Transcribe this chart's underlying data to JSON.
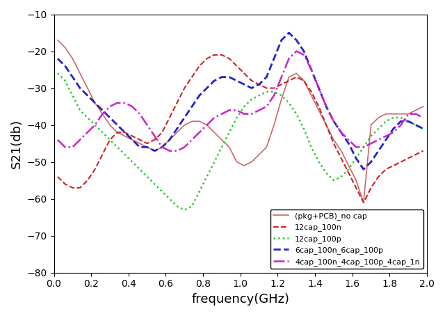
{
  "xlabel": "frequency(GHz)",
  "ylabel": "S21(db)",
  "xlim": [
    0,
    2.0
  ],
  "ylim": [
    -80,
    -10
  ],
  "yticks": [
    -80,
    -70,
    -60,
    -50,
    -40,
    -30,
    -20,
    -10
  ],
  "xticks": [
    0,
    0.2,
    0.4,
    0.6,
    0.8,
    1.0,
    1.2,
    1.4,
    1.6,
    1.8,
    2.0
  ],
  "legend_loc": "lower right",
  "lines": [
    {
      "label": "(pkg+PCB)_no cap",
      "color": "#cc6666",
      "linestyle": "solid",
      "linewidth": 1.2,
      "x": [
        0.02,
        0.06,
        0.1,
        0.14,
        0.18,
        0.22,
        0.26,
        0.3,
        0.34,
        0.38,
        0.42,
        0.46,
        0.5,
        0.54,
        0.58,
        0.62,
        0.66,
        0.7,
        0.74,
        0.78,
        0.82,
        0.86,
        0.9,
        0.94,
        0.98,
        1.02,
        1.06,
        1.1,
        1.14,
        1.18,
        1.22,
        1.26,
        1.3,
        1.34,
        1.38,
        1.42,
        1.46,
        1.5,
        1.54,
        1.58,
        1.62,
        1.66,
        1.7,
        1.74,
        1.78,
        1.82,
        1.86,
        1.9,
        1.94,
        1.98
      ],
      "y": [
        -17,
        -19,
        -22,
        -26,
        -30,
        -34,
        -37,
        -40,
        -42,
        -43,
        -44,
        -45,
        -46,
        -47,
        -46,
        -44,
        -42,
        -40,
        -39,
        -39,
        -40,
        -42,
        -44,
        -46,
        -50,
        -51,
        -50,
        -48,
        -46,
        -40,
        -33,
        -27,
        -26,
        -28,
        -32,
        -36,
        -40,
        -44,
        -47,
        -51,
        -55,
        -61,
        -40,
        -38,
        -37,
        -37,
        -37,
        -37,
        -36,
        -35
      ]
    },
    {
      "label": "12cap_100n",
      "color": "#cc2222",
      "linestyle": "dashed",
      "linewidth": 1.5,
      "x": [
        0.02,
        0.06,
        0.1,
        0.14,
        0.18,
        0.22,
        0.26,
        0.3,
        0.34,
        0.38,
        0.42,
        0.46,
        0.5,
        0.54,
        0.58,
        0.62,
        0.66,
        0.7,
        0.74,
        0.78,
        0.82,
        0.86,
        0.9,
        0.94,
        0.98,
        1.02,
        1.06,
        1.1,
        1.14,
        1.18,
        1.22,
        1.26,
        1.3,
        1.34,
        1.38,
        1.42,
        1.46,
        1.5,
        1.54,
        1.58,
        1.62,
        1.66,
        1.7,
        1.74,
        1.78,
        1.82,
        1.86,
        1.9,
        1.94,
        1.98
      ],
      "y": [
        -54,
        -56,
        -57,
        -57,
        -55,
        -52,
        -48,
        -44,
        -42,
        -42,
        -43,
        -44,
        -45,
        -44,
        -42,
        -38,
        -34,
        -30,
        -27,
        -24,
        -22,
        -21,
        -21,
        -22,
        -24,
        -26,
        -28,
        -29,
        -30,
        -30,
        -29,
        -28,
        -27,
        -28,
        -31,
        -35,
        -40,
        -45,
        -49,
        -53,
        -57,
        -61,
        -57,
        -54,
        -52,
        -51,
        -50,
        -49,
        -48,
        -47
      ]
    },
    {
      "label": "12cap_100p",
      "color": "#22cc22",
      "linestyle": "dotted",
      "linewidth": 1.8,
      "x": [
        0.02,
        0.06,
        0.1,
        0.14,
        0.18,
        0.22,
        0.26,
        0.3,
        0.34,
        0.38,
        0.42,
        0.46,
        0.5,
        0.54,
        0.58,
        0.62,
        0.66,
        0.7,
        0.74,
        0.78,
        0.82,
        0.86,
        0.9,
        0.94,
        0.98,
        1.02,
        1.06,
        1.1,
        1.14,
        1.18,
        1.22,
        1.26,
        1.3,
        1.34,
        1.38,
        1.42,
        1.46,
        1.5,
        1.54,
        1.58,
        1.62,
        1.66,
        1.7,
        1.74,
        1.78,
        1.82,
        1.86,
        1.9,
        1.94,
        1.98
      ],
      "y": [
        -26,
        -28,
        -32,
        -36,
        -38,
        -40,
        -42,
        -44,
        -46,
        -48,
        -50,
        -52,
        -54,
        -56,
        -58,
        -60,
        -62,
        -63,
        -62,
        -58,
        -54,
        -50,
        -46,
        -42,
        -38,
        -35,
        -33,
        -32,
        -31,
        -31,
        -32,
        -34,
        -37,
        -41,
        -46,
        -50,
        -53,
        -55,
        -54,
        -52,
        -49,
        -46,
        -43,
        -41,
        -39,
        -38,
        -38,
        -39,
        -40,
        -41
      ]
    },
    {
      "label": "6cap_100n_6cap_100p",
      "color": "#2222cc",
      "linestyle": "dashed",
      "linewidth": 2.0,
      "x": [
        0.02,
        0.06,
        0.1,
        0.14,
        0.18,
        0.22,
        0.26,
        0.3,
        0.34,
        0.38,
        0.42,
        0.46,
        0.5,
        0.54,
        0.58,
        0.62,
        0.66,
        0.7,
        0.74,
        0.78,
        0.82,
        0.86,
        0.9,
        0.94,
        0.98,
        1.02,
        1.06,
        1.1,
        1.14,
        1.18,
        1.22,
        1.26,
        1.3,
        1.34,
        1.38,
        1.42,
        1.46,
        1.5,
        1.54,
        1.58,
        1.62,
        1.66,
        1.7,
        1.74,
        1.78,
        1.82,
        1.86,
        1.9,
        1.94,
        1.98
      ],
      "y": [
        -22,
        -24,
        -27,
        -30,
        -32,
        -34,
        -36,
        -38,
        -40,
        -42,
        -44,
        -46,
        -46,
        -47,
        -46,
        -44,
        -41,
        -38,
        -35,
        -32,
        -30,
        -28,
        -27,
        -27,
        -28,
        -29,
        -30,
        -29,
        -27,
        -22,
        -17,
        -15,
        -17,
        -20,
        -25,
        -30,
        -35,
        -39,
        -42,
        -45,
        -49,
        -52,
        -50,
        -47,
        -44,
        -41,
        -39,
        -39,
        -40,
        -41
      ]
    },
    {
      "label": "4cap_100n_4cap_100p_4cap_1n",
      "color": "#cc22cc",
      "linestyle": "dashdot",
      "linewidth": 1.8,
      "x": [
        0.02,
        0.06,
        0.1,
        0.14,
        0.18,
        0.22,
        0.26,
        0.3,
        0.34,
        0.38,
        0.42,
        0.46,
        0.5,
        0.54,
        0.58,
        0.62,
        0.66,
        0.7,
        0.74,
        0.78,
        0.82,
        0.86,
        0.9,
        0.94,
        0.98,
        1.02,
        1.06,
        1.1,
        1.14,
        1.18,
        1.22,
        1.26,
        1.3,
        1.34,
        1.38,
        1.42,
        1.46,
        1.5,
        1.54,
        1.58,
        1.62,
        1.66,
        1.7,
        1.74,
        1.78,
        1.82,
        1.86,
        1.9,
        1.94,
        1.98
      ],
      "y": [
        -44,
        -46,
        -46,
        -44,
        -42,
        -40,
        -37,
        -35,
        -34,
        -34,
        -35,
        -37,
        -40,
        -43,
        -46,
        -47,
        -47,
        -46,
        -44,
        -42,
        -40,
        -38,
        -37,
        -36,
        -36,
        -37,
        -37,
        -36,
        -35,
        -32,
        -27,
        -22,
        -20,
        -21,
        -25,
        -30,
        -35,
        -39,
        -42,
        -44,
        -46,
        -46,
        -45,
        -44,
        -43,
        -42,
        -40,
        -37,
        -37,
        -38
      ]
    }
  ]
}
